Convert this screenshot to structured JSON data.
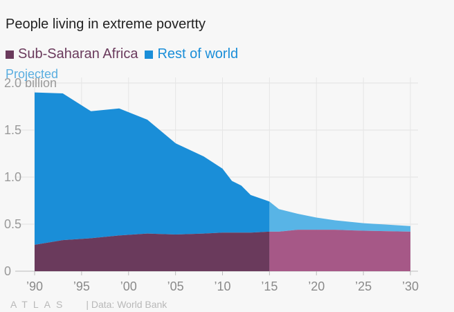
{
  "header": {
    "title": "People living in extreme povertty"
  },
  "legend": {
    "items": [
      {
        "label": "Sub-Saharan Africa",
        "color": "#6a3a5c"
      },
      {
        "label": "Rest of world",
        "color": "#1a8ed8"
      }
    ],
    "projected_label": "Projected"
  },
  "footer": {
    "brand": "ATLAS",
    "credit": "| Data: World Bank"
  },
  "chart_data": {
    "type": "area",
    "stacked": true,
    "x": [
      1990,
      1993,
      1996,
      1999,
      2002,
      2005,
      2008,
      2010,
      2011,
      2012,
      2013,
      2015,
      2016,
      2018,
      2020,
      2022,
      2025,
      2030
    ],
    "series": [
      {
        "name": "Sub-Saharan Africa",
        "color": "#6a3a5c",
        "projected_color": "#a65887",
        "values": [
          0.28,
          0.33,
          0.35,
          0.38,
          0.4,
          0.39,
          0.4,
          0.41,
          0.41,
          0.41,
          0.41,
          0.42,
          0.42,
          0.44,
          0.44,
          0.44,
          0.43,
          0.42
        ]
      },
      {
        "name": "Rest of world",
        "color": "#1a8ed8",
        "projected_color": "#58b4e6",
        "values": [
          1.62,
          1.56,
          1.35,
          1.35,
          1.21,
          0.97,
          0.82,
          0.68,
          0.55,
          0.5,
          0.4,
          0.32,
          0.24,
          0.17,
          0.13,
          0.1,
          0.08,
          0.06
        ]
      }
    ],
    "projection_start": 2015,
    "xlim": [
      1990,
      2030
    ],
    "ylim": [
      0,
      2.0
    ],
    "y_ticks": [
      0,
      0.5,
      1.0,
      1.5,
      2.0
    ],
    "y_tick_labels": [
      "0",
      "0.5",
      "1.0",
      "1.5",
      "2.0 billion"
    ],
    "x_ticks": [
      1990,
      1995,
      2000,
      2005,
      2010,
      2015,
      2020,
      2025,
      2030
    ],
    "x_tick_labels": [
      "’90",
      "’95",
      "’00",
      "’05",
      "’10",
      "’15",
      "’20",
      "’25",
      "’30"
    ],
    "grid": true,
    "legend_position": "top-left"
  }
}
